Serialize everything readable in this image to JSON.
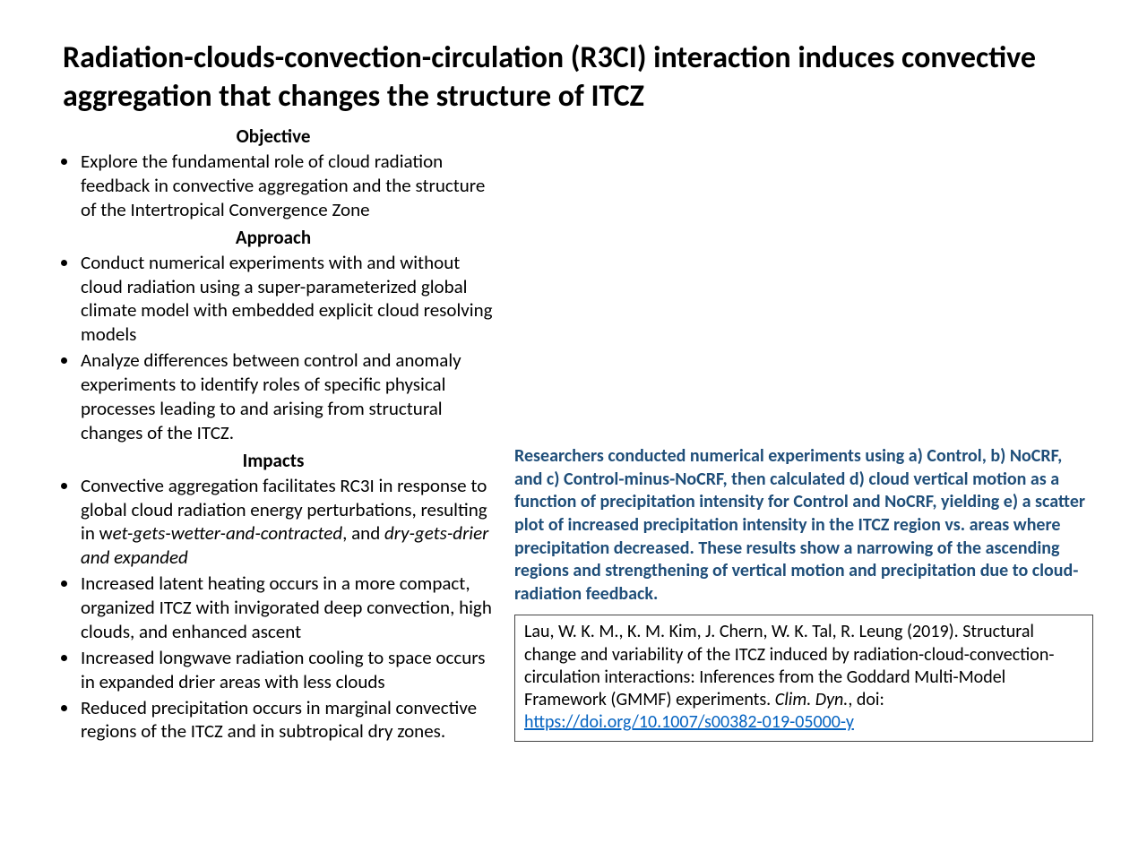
{
  "title": "Radiation-clouds-convection-circulation (R3CI) interaction induces convective aggregation that changes the structure of ITCZ",
  "sections": {
    "objective": {
      "heading": "Objective",
      "items": [
        "Explore the fundamental role of cloud radiation feedback in convective aggregation and the structure of the Intertropical Convergence Zone"
      ]
    },
    "approach": {
      "heading": "Approach",
      "items": [
        "Conduct numerical experiments with and without cloud radiation using a super-parameterized global climate model with embedded explicit cloud resolving models",
        "Analyze differences between control and anomaly experiments to identify roles of specific physical processes leading to and arising from structural changes of the ITCZ."
      ]
    },
    "impacts": {
      "heading": "Impacts",
      "items": [
        {
          "pre": "Convective aggregation facilitates RC3I in response to global cloud radiation energy perturbations, resulting in w",
          "it1": "et-gets-wetter-and-contracted",
          "mid": ", and ",
          "it2": "dry-gets-drier and expanded"
        },
        "Increased latent heating occurs in a more compact, organized ITCZ with invigorated deep convection, high clouds, and enhanced ascent",
        "Increased longwave radiation cooling to space occurs in expanded drier areas with less clouds",
        "Reduced precipitation occurs in marginal convective regions of the ITCZ and in subtropical dry zones."
      ]
    }
  },
  "caption": "Researchers conducted numerical experiments using a) Control, b) NoCRF, and c) Control-minus-NoCRF, then calculated d) cloud vertical motion as a function of  precipitation intensity for Control and NoCRF, yielding e) a scatter plot of increased precipitation intensity in the ITCZ region vs. areas  where precipitation decreased. These results show a narrowing of the ascending regions and strengthening of vertical motion and precipitation due to cloud-radiation feedback.",
  "citation": {
    "authors": "Lau, W. K. M., K. M. Kim, J. Chern, W. K. Tal,  R. Leung (2019). Structural change and variability of the ITCZ induced by radiation-cloud-convection-circulation interactions: Inferences from the Goddard Multi-Model Framework (GMMF) experiments.  ",
    "journal": "Clim. Dyn.",
    "post": ", doi: ",
    "doi": "https://doi.org/10.1007/s00382-019-05000-y"
  },
  "colors": {
    "caption": "#1f4e79",
    "link": "#0563c1",
    "text": "#000000",
    "bg": "#ffffff"
  }
}
